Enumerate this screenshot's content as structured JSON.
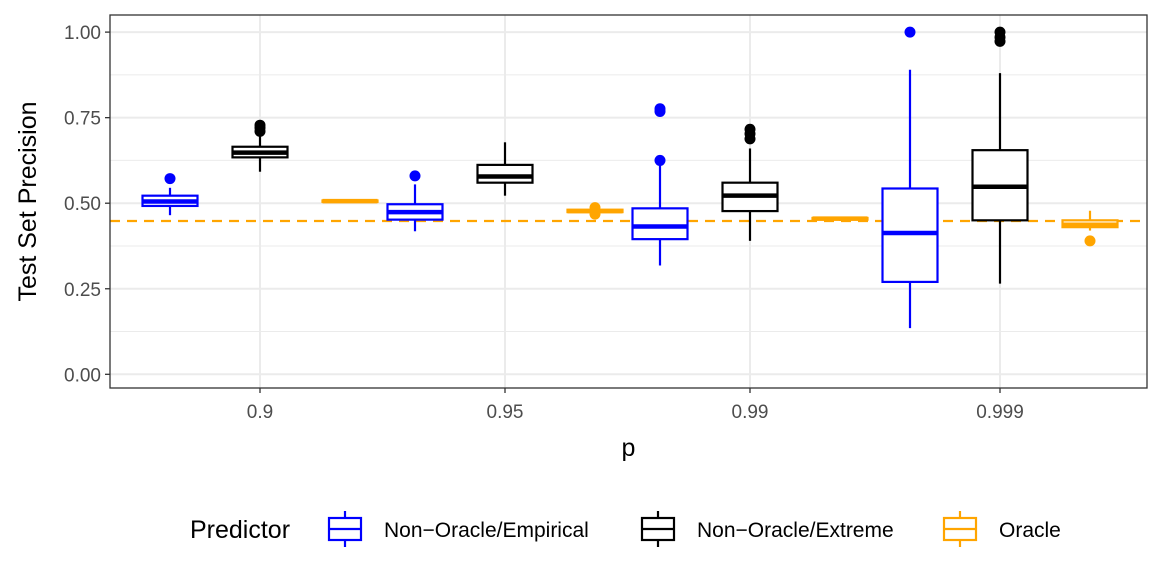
{
  "chart_data": {
    "type": "box",
    "title": "",
    "xlabel": "p",
    "ylabel": "Test Set Precision",
    "ylim": [
      -0.04,
      1.05
    ],
    "y_ticks": [
      0.0,
      0.25,
      0.5,
      0.75,
      1.0
    ],
    "y_tick_labels": [
      "0.00",
      "0.25",
      "0.50",
      "0.75",
      "1.00"
    ],
    "categories": [
      "0.9",
      "0.95",
      "0.99",
      "0.999"
    ],
    "reference_line": {
      "y": 0.448,
      "style": "dashed",
      "color": "#FFA500"
    },
    "legend": {
      "title": "Predictor",
      "position": "bottom"
    },
    "series": [
      {
        "name": "Non−Oracle/Empirical",
        "color": "#0000FF",
        "boxes": [
          {
            "category": "0.9",
            "low": 0.465,
            "q1": 0.492,
            "median": 0.505,
            "q3": 0.522,
            "high": 0.545,
            "outliers": [
              0.572
            ]
          },
          {
            "category": "0.95",
            "low": 0.418,
            "q1": 0.452,
            "median": 0.474,
            "q3": 0.497,
            "high": 0.555,
            "outliers": [
              0.58
            ]
          },
          {
            "category": "0.99",
            "low": 0.318,
            "q1": 0.395,
            "median": 0.432,
            "q3": 0.485,
            "high": 0.615,
            "outliers": [
              0.625,
              0.768,
              0.776
            ]
          },
          {
            "category": "0.999",
            "low": 0.135,
            "q1": 0.27,
            "median": 0.413,
            "q3": 0.543,
            "high": 0.89,
            "outliers": [
              1.0
            ]
          }
        ]
      },
      {
        "name": "Non−Oracle/Extreme",
        "color": "#000000",
        "boxes": [
          {
            "category": "0.9",
            "low": 0.592,
            "q1": 0.634,
            "median": 0.648,
            "q3": 0.665,
            "high": 0.695,
            "outliers": [
              0.71,
              0.72,
              0.728
            ]
          },
          {
            "category": "0.95",
            "low": 0.522,
            "q1": 0.56,
            "median": 0.578,
            "q3": 0.612,
            "high": 0.678,
            "outliers": []
          },
          {
            "category": "0.99",
            "low": 0.39,
            "q1": 0.477,
            "median": 0.522,
            "q3": 0.56,
            "high": 0.66,
            "outliers": [
              0.688,
              0.703,
              0.716
            ]
          },
          {
            "category": "0.999",
            "low": 0.265,
            "q1": 0.45,
            "median": 0.548,
            "q3": 0.655,
            "high": 0.88,
            "outliers": [
              0.973,
              0.985,
              1.0
            ]
          }
        ]
      },
      {
        "name": "Oracle",
        "color": "#FFA500",
        "boxes": [
          {
            "category": "0.9",
            "low": 0.502,
            "q1": 0.504,
            "median": 0.506,
            "q3": 0.508,
            "high": 0.51,
            "outliers": []
          },
          {
            "category": "0.95",
            "low": 0.47,
            "q1": 0.474,
            "median": 0.477,
            "q3": 0.481,
            "high": 0.486,
            "outliers": [
              0.468,
              0.487
            ]
          },
          {
            "category": "0.99",
            "low": 0.448,
            "q1": 0.452,
            "median": 0.455,
            "q3": 0.457,
            "high": 0.461,
            "outliers": []
          },
          {
            "category": "0.999",
            "low": 0.42,
            "q1": 0.43,
            "median": 0.437,
            "q3": 0.45,
            "high": 0.478,
            "outliers": [
              0.39
            ]
          }
        ]
      }
    ]
  }
}
